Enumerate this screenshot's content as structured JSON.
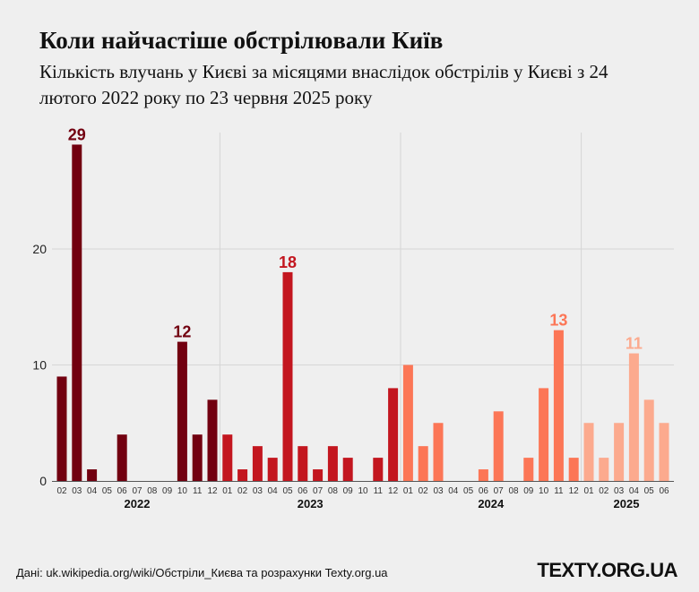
{
  "title": "Коли найчастіше обстрілювали Київ",
  "subtitle": "Кількість влучань у Києві за місяцями внаслідок обстрілів у Києві з 24 лютого 2022 року по 23 червня 2025 року",
  "source": "Дані: uk.wikipedia.org/wiki/Обстріли_Києва та розрахунки Texty.org.ua",
  "logo": "TEXTY.ORG.UA",
  "chart_data": {
    "type": "bar",
    "ylim": [
      0,
      30
    ],
    "yticks": [
      "0",
      "10",
      "20"
    ],
    "grid": true,
    "year_colors": {
      "2022": "#720010",
      "2023": "#c3161f",
      "2024": "#fc7656",
      "2025": "#fcaa8e"
    },
    "groups": [
      {
        "year": "2022",
        "months": [
          "02",
          "03",
          "04",
          "05",
          "06",
          "07",
          "08",
          "09",
          "10",
          "11",
          "12"
        ],
        "values": [
          9,
          29,
          1,
          0,
          4,
          0,
          0,
          0,
          12,
          4,
          7
        ]
      },
      {
        "year": "2023",
        "months": [
          "01",
          "02",
          "03",
          "04",
          "05",
          "06",
          "07",
          "08",
          "09",
          "10",
          "11",
          "12"
        ],
        "values": [
          4,
          1,
          3,
          2,
          18,
          3,
          1,
          3,
          2,
          0,
          2,
          8
        ]
      },
      {
        "year": "2024",
        "months": [
          "01",
          "02",
          "03",
          "04",
          "05",
          "06",
          "07",
          "08",
          "09",
          "10",
          "11",
          "12"
        ],
        "values": [
          10,
          3,
          5,
          0,
          0,
          1,
          6,
          0,
          2,
          8,
          13,
          2
        ]
      },
      {
        "year": "2025",
        "months": [
          "01",
          "02",
          "03",
          "04",
          "05",
          "06"
        ],
        "values": [
          5,
          2,
          5,
          11,
          7,
          5
        ]
      }
    ],
    "data_labels": [
      {
        "year": "2022",
        "month": "03",
        "text": "29"
      },
      {
        "year": "2022",
        "month": "10",
        "text": "12"
      },
      {
        "year": "2023",
        "month": "05",
        "text": "18"
      },
      {
        "year": "2024",
        "month": "11",
        "text": "13"
      },
      {
        "year": "2025",
        "month": "04",
        "text": "11"
      }
    ]
  }
}
